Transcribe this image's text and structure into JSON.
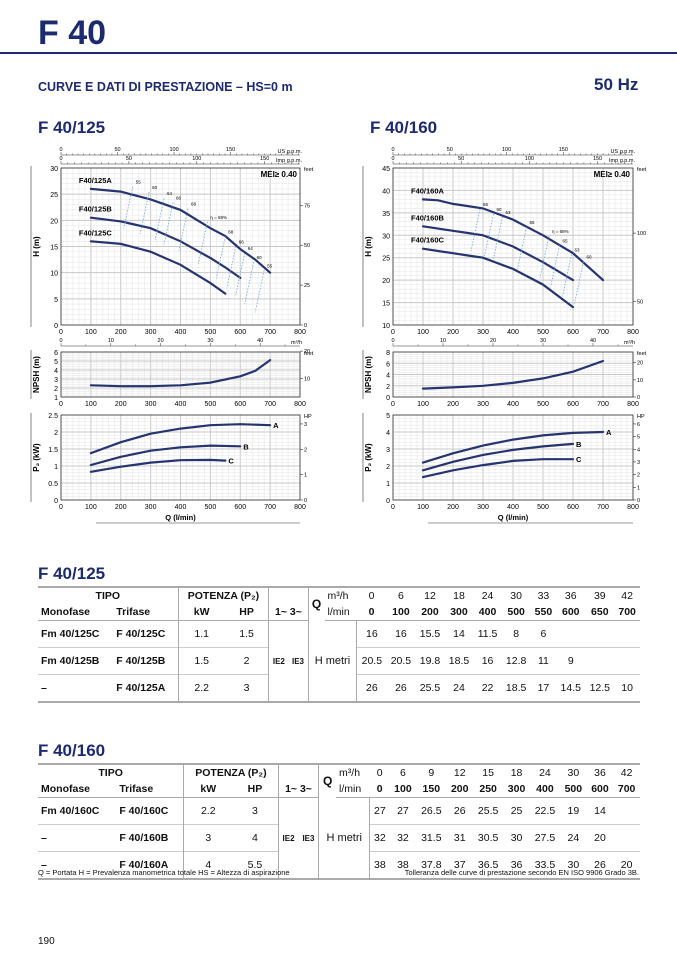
{
  "header": {
    "title": "F 40",
    "subtitle": "CURVE E DATI DI PRESTAZIONE  –  HS=0 m",
    "frequency": "50 Hz"
  },
  "colors": {
    "brand": "#1d2b6e",
    "curve": "#26346f",
    "efficiency": "#6fa8dc",
    "grid": "#c8c8c8"
  },
  "chart_data": [
    {
      "type": "line",
      "title": "F 40/125",
      "xlabel": "Q (l/min)",
      "xlim": [
        0,
        800
      ],
      "mei": "MEI≥ 0.40",
      "secondary_x": [
        {
          "label": "US g.p.m.",
          "ticks": [
            0,
            50,
            100,
            150
          ],
          "factor": 0.2642
        },
        {
          "label": "Imp g.p.m.",
          "ticks": [
            0,
            50,
            100,
            150
          ],
          "factor": 0.22
        },
        {
          "label": "m³/h",
          "ticks": [
            0,
            10,
            20,
            30,
            40
          ],
          "factor": 0.06
        }
      ],
      "head": {
        "ylabel": "H (m)",
        "ylim": [
          0,
          30
        ],
        "yticks": [
          0,
          5,
          10,
          15,
          20,
          25,
          30
        ],
        "right_label": "feet",
        "right_ticks": [
          0,
          25,
          50,
          75
        ],
        "right_factor": 3.2808,
        "series": [
          {
            "name": "F40/125A",
            "x": [
              100,
              200,
              300,
              400,
              500,
              550,
              600,
              650,
              700
            ],
            "y": [
              26,
              25.5,
              24,
              22,
              18.5,
              17,
              14.5,
              12.5,
              10
            ]
          },
          {
            "name": "F40/125B",
            "x": [
              100,
              200,
              300,
              400,
              500,
              550,
              600
            ],
            "y": [
              20.5,
              19.8,
              18.5,
              16,
              12.8,
              11,
              9
            ]
          },
          {
            "name": "F40/125C",
            "x": [
              100,
              200,
              300,
              400,
              500,
              550
            ],
            "y": [
              16,
              15.5,
              14,
              11.5,
              8,
              6
            ]
          }
        ],
        "efficiency_labels": [
          {
            "t": "55",
            "q": 250,
            "h": 27
          },
          {
            "t": "60",
            "q": 305,
            "h": 26
          },
          {
            "t": "64",
            "q": 355,
            "h": 24.8
          },
          {
            "t": "66",
            "q": 385,
            "h": 24
          },
          {
            "t": "68",
            "q": 435,
            "h": 22.8
          },
          {
            "t": "η = 69%",
            "q": 500,
            "h": 20.3
          },
          {
            "t": "68",
            "q": 560,
            "h": 17.5
          },
          {
            "t": "66",
            "q": 595,
            "h": 15.6
          },
          {
            "t": "64",
            "q": 625,
            "h": 14.3
          },
          {
            "t": "60",
            "q": 655,
            "h": 12.6
          },
          {
            "t": "55",
            "q": 690,
            "h": 11
          }
        ]
      },
      "npsh": {
        "ylabel": "NPSH (m)",
        "ylim": [
          1,
          6
        ],
        "yticks": [
          1,
          2,
          3,
          4,
          5,
          6
        ],
        "right_label": "feet",
        "right_ticks": [
          0,
          10,
          20
        ],
        "right_factor": 3.2808,
        "series": [
          {
            "name": "NPSH",
            "x": [
              100,
              200,
              300,
              400,
              500,
              600,
              650,
              700
            ],
            "y": [
              2.3,
              2.2,
              2.2,
              2.3,
              2.6,
              3.3,
              3.9,
              5.1
            ]
          }
        ]
      },
      "power": {
        "ylabel": "P₂ (kW)",
        "ylim": [
          0,
          2.5
        ],
        "yticks": [
          0,
          0.5,
          1,
          1.5,
          2,
          2.5
        ],
        "right_label": "HP",
        "right_ticks": [
          0,
          1,
          2,
          3
        ],
        "right_factor": 1.341,
        "series": [
          {
            "name": "A",
            "x": [
              100,
              200,
              300,
              400,
              500,
              600,
              700
            ],
            "y": [
              1.38,
              1.7,
              1.95,
              2.1,
              2.2,
              2.23,
              2.2
            ]
          },
          {
            "name": "B",
            "x": [
              100,
              200,
              300,
              400,
              500,
              600
            ],
            "y": [
              1.03,
              1.27,
              1.45,
              1.55,
              1.6,
              1.58
            ]
          },
          {
            "name": "C",
            "x": [
              100,
              200,
              300,
              400,
              500,
              550
            ],
            "y": [
              0.83,
              0.98,
              1.1,
              1.17,
              1.18,
              1.16
            ]
          }
        ]
      }
    },
    {
      "type": "line",
      "title": "F 40/160",
      "xlabel": "Q (l/min)",
      "xlim": [
        0,
        800
      ],
      "mei": "MEI≥ 0.40",
      "secondary_x": [
        {
          "label": "US g.p.m.",
          "ticks": [
            0,
            50,
            100,
            150
          ],
          "factor": 0.2642
        },
        {
          "label": "Imp g.p.m.",
          "ticks": [
            0,
            50,
            100,
            150
          ],
          "factor": 0.22
        },
        {
          "label": "m³/h",
          "ticks": [
            0,
            10,
            20,
            30,
            40
          ],
          "factor": 0.06
        }
      ],
      "head": {
        "ylabel": "H (m)",
        "ylim": [
          10,
          45
        ],
        "yticks": [
          10,
          15,
          20,
          25,
          30,
          35,
          40,
          45
        ],
        "right_label": "feet",
        "right_ticks": [
          50,
          100
        ],
        "right_factor": 3.2808,
        "series": [
          {
            "name": "F40/160A",
            "x": [
              100,
              150,
              200,
              250,
              300,
              400,
              500,
              600,
              700
            ],
            "y": [
              38,
              37.8,
              37,
              36.5,
              36,
              33.5,
              30,
              26,
              20
            ]
          },
          {
            "name": "F40/160B",
            "x": [
              100,
              150,
              200,
              250,
              300,
              400,
              500,
              600
            ],
            "y": [
              32,
              31.5,
              31,
              30.5,
              30,
              27.5,
              24,
              20
            ]
          },
          {
            "name": "F40/160C",
            "x": [
              100,
              150,
              200,
              250,
              300,
              400,
              500,
              600
            ],
            "y": [
              27,
              26.5,
              26,
              25.5,
              25,
              22.5,
              19,
              14
            ]
          }
        ],
        "efficiency_labels": [
          {
            "t": "55",
            "q": 300,
            "h": 36.5
          },
          {
            "t": "60",
            "q": 345,
            "h": 35.4
          },
          {
            "t": "63",
            "q": 375,
            "h": 34.8
          },
          {
            "t": "65",
            "q": 455,
            "h": 32.5
          },
          {
            "t": "η = 68%",
            "q": 530,
            "h": 30.5
          },
          {
            "t": "65",
            "q": 565,
            "h": 28.4
          },
          {
            "t": "63",
            "q": 605,
            "h": 26.4
          },
          {
            "t": "60",
            "q": 645,
            "h": 24.8
          }
        ]
      },
      "npsh": {
        "ylabel": "NPSH (m)",
        "ylim": [
          0,
          8
        ],
        "yticks": [
          0,
          2,
          4,
          6,
          8
        ],
        "right_label": "feet",
        "right_ticks": [
          0,
          10,
          20
        ],
        "right_factor": 3.2808,
        "series": [
          {
            "name": "NPSH",
            "x": [
              100,
              200,
              300,
              400,
              500,
              600,
              700
            ],
            "y": [
              1.5,
              1.7,
              2.0,
              2.5,
              3.3,
              4.5,
              6.4
            ]
          }
        ]
      },
      "power": {
        "ylabel": "P₂ (kW)",
        "ylim": [
          0,
          5
        ],
        "yticks": [
          0,
          1,
          2,
          3,
          4,
          5
        ],
        "right_label": "HP",
        "right_ticks": [
          0,
          1,
          2,
          3,
          4,
          5,
          6
        ],
        "right_factor": 1.341,
        "series": [
          {
            "name": "A",
            "x": [
              100,
              200,
              300,
              400,
              500,
              600,
              700
            ],
            "y": [
              2.2,
              2.75,
              3.2,
              3.55,
              3.8,
              3.95,
              4.0
            ]
          },
          {
            "name": "B",
            "x": [
              100,
              200,
              300,
              400,
              500,
              600
            ],
            "y": [
              1.75,
              2.25,
              2.65,
              2.95,
              3.15,
              3.3
            ]
          },
          {
            "name": "C",
            "x": [
              100,
              200,
              300,
              400,
              500,
              600
            ],
            "y": [
              1.35,
              1.75,
              2.05,
              2.3,
              2.4,
              2.4
            ]
          }
        ]
      }
    }
  ],
  "tables": [
    {
      "title": "F 40/125",
      "h": {
        "tipo": "TIPO",
        "potenza": "POTENZA (P₂)",
        "monofase": "Monofase",
        "trifase": "Trifase",
        "kw": "kW",
        "hp": "HP",
        "phase": "1~ 3~",
        "q": "Q",
        "m3h": "m³/h",
        "lmin": "l/min",
        "ie2": "IE2",
        "ie3": "IE3",
        "hm": "H metri"
      },
      "m3h": [
        "0",
        "6",
        "12",
        "18",
        "24",
        "30",
        "33",
        "36",
        "39",
        "42"
      ],
      "lmin": [
        "0",
        "100",
        "200",
        "300",
        "400",
        "500",
        "550",
        "600",
        "650",
        "700"
      ],
      "rows": [
        {
          "mono": "Fm 40/125C",
          "tri": "F 40/125C",
          "kw": "1.1",
          "hp": "1.5",
          "h": [
            "16",
            "16",
            "15.5",
            "14",
            "11.5",
            "8",
            "6",
            "",
            "",
            ""
          ]
        },
        {
          "mono": "Fm 40/125B",
          "tri": "F 40/125B",
          "kw": "1.5",
          "hp": "2",
          "h": [
            "20.5",
            "20.5",
            "19.8",
            "18.5",
            "16",
            "12.8",
            "11",
            "9",
            "",
            ""
          ]
        },
        {
          "mono": "–",
          "tri": "F 40/125A",
          "kw": "2.2",
          "hp": "3",
          "h": [
            "26",
            "26",
            "25.5",
            "24",
            "22",
            "18.5",
            "17",
            "14.5",
            "12.5",
            "10"
          ]
        }
      ]
    },
    {
      "title": "F 40/160",
      "h": {
        "tipo": "TIPO",
        "potenza": "POTENZA (P₂)",
        "monofase": "Monofase",
        "trifase": "Trifase",
        "kw": "kW",
        "hp": "HP",
        "phase": "1~ 3~",
        "q": "Q",
        "m3h": "m³/h",
        "lmin": "l/min",
        "ie2": "IE2",
        "ie3": "IE3",
        "hm": "H metri"
      },
      "m3h": [
        "0",
        "6",
        "9",
        "12",
        "15",
        "18",
        "24",
        "30",
        "36",
        "42"
      ],
      "lmin": [
        "0",
        "100",
        "150",
        "200",
        "250",
        "300",
        "400",
        "500",
        "600",
        "700"
      ],
      "rows": [
        {
          "mono": "Fm 40/160C",
          "tri": "F 40/160C",
          "kw": "2.2",
          "hp": "3",
          "h": [
            "27",
            "27",
            "26.5",
            "26",
            "25.5",
            "25",
            "22.5",
            "19",
            "14",
            ""
          ]
        },
        {
          "mono": "–",
          "tri": "F 40/160B",
          "kw": "3",
          "hp": "4",
          "h": [
            "32",
            "32",
            "31.5",
            "31",
            "30.5",
            "30",
            "27.5",
            "24",
            "20",
            ""
          ]
        },
        {
          "mono": "–",
          "tri": "F 40/160A",
          "kw": "4",
          "hp": "5.5",
          "h": [
            "38",
            "38",
            "37.8",
            "37",
            "36.5",
            "36",
            "33.5",
            "30",
            "26",
            "20"
          ]
        }
      ]
    }
  ],
  "footer": {
    "legend": "Q = Portata   H = Prevalenza manometrica totale   HS = Altezza di aspirazione",
    "tolerance": "Tolleranza delle curve di prestazione secondo EN ISO 9906 Grado 3B.",
    "page": "190"
  }
}
